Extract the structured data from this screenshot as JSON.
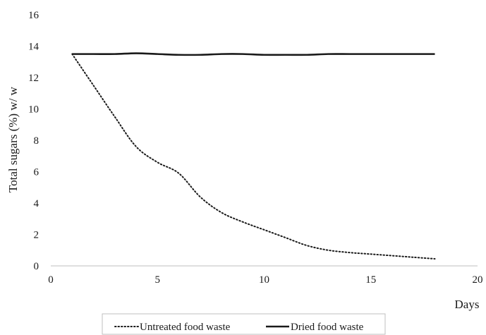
{
  "chart_data": {
    "type": "line",
    "title": "",
    "xlabel": "Days",
    "ylabel": "Total sugars (%) w/ w",
    "xlim": [
      0,
      20
    ],
    "ylim": [
      0,
      16
    ],
    "xticks": [
      0,
      5,
      10,
      15,
      20
    ],
    "yticks": [
      0,
      2,
      4,
      6,
      8,
      10,
      12,
      14,
      16
    ],
    "grid": false,
    "legend_position": "bottom",
    "series": [
      {
        "name": "Untreated food waste",
        "style": "dotted",
        "color": "#1a1a1a",
        "x": [
          1,
          2,
          3,
          4,
          5,
          6,
          7,
          8,
          9,
          10,
          11,
          12,
          13,
          14,
          15,
          16,
          17,
          18
        ],
        "y": [
          13.5,
          11.5,
          9.5,
          7.6,
          6.6,
          5.9,
          4.4,
          3.4,
          2.8,
          2.3,
          1.8,
          1.3,
          1.0,
          0.85,
          0.75,
          0.65,
          0.55,
          0.45
        ]
      },
      {
        "name": "Dried food waste",
        "style": "solid",
        "color": "#1a1a1a",
        "x": [
          1,
          2,
          3,
          4,
          5,
          6,
          7,
          8,
          9,
          10,
          11,
          12,
          13,
          14,
          15,
          16,
          17,
          18
        ],
        "y": [
          13.5,
          13.5,
          13.5,
          13.55,
          13.5,
          13.45,
          13.45,
          13.5,
          13.5,
          13.45,
          13.45,
          13.45,
          13.5,
          13.5,
          13.5,
          13.5,
          13.5,
          13.5
        ]
      }
    ]
  }
}
